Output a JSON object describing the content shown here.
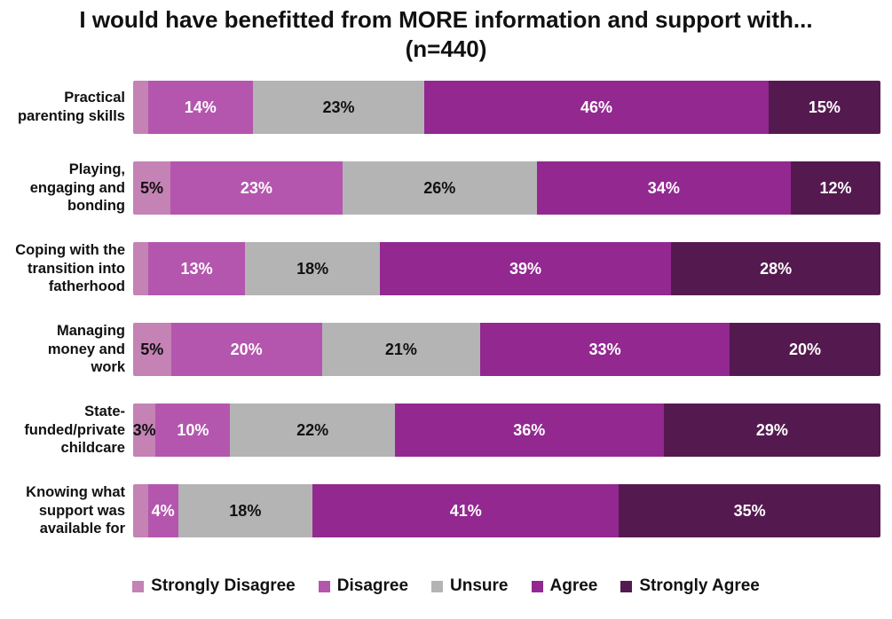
{
  "chart_data": {
    "type": "bar",
    "orientation": "horizontal-stacked",
    "title": "I would have benefitted from MORE information and support with...",
    "subtitle": "(n=440)",
    "xlim": [
      0,
      100
    ],
    "grid": false,
    "legend_position": "bottom",
    "value_suffix": "%",
    "min_label_value": 3,
    "categories": [
      "Practical\nparenting skills",
      "Playing,\nengaging and\nbonding",
      "Coping with the\ntransition into\nfatherhood",
      "Managing\nmoney and\nwork",
      "State-\nfunded/private\nchildcare",
      "Knowing what\nsupport was\navailable for"
    ],
    "series": [
      {
        "name": "Strongly Disagree",
        "key": "strongly-disagree",
        "color": "#c482b5",
        "text_color": "#111111",
        "values": [
          2,
          5,
          2,
          5,
          3,
          2
        ]
      },
      {
        "name": "Disagree",
        "key": "disagree",
        "color": "#b456ae",
        "text_color": "#ffffff",
        "values": [
          14,
          23,
          13,
          20,
          10,
          4
        ]
      },
      {
        "name": "Unsure",
        "key": "unsure",
        "color": "#b5b4b5",
        "text_color": "#111111",
        "values": [
          23,
          26,
          18,
          21,
          22,
          18
        ]
      },
      {
        "name": "Agree",
        "key": "agree",
        "color": "#922890",
        "text_color": "#ffffff",
        "values": [
          46,
          34,
          39,
          33,
          36,
          41
        ]
      },
      {
        "name": "Strongly Agree",
        "key": "strongly-agree",
        "color": "#541a4f",
        "text_color": "#ffffff",
        "values": [
          15,
          12,
          28,
          20,
          29,
          35
        ]
      }
    ]
  }
}
